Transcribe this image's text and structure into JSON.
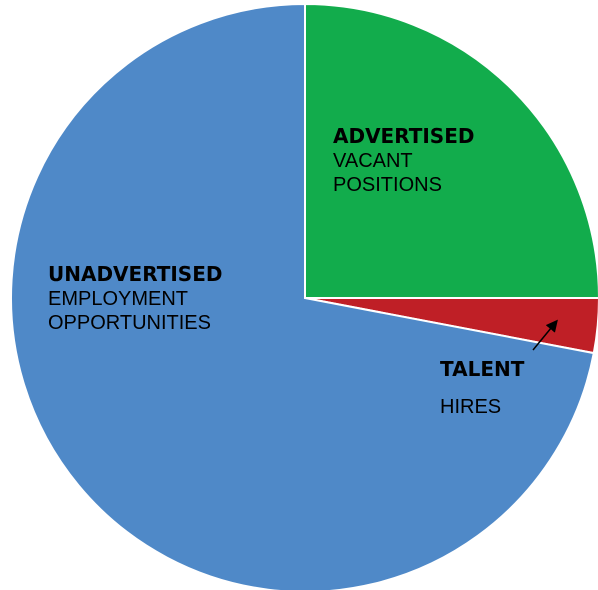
{
  "chart_data": {
    "type": "pie",
    "title": "",
    "start_angle_deg": 0,
    "direction": "clockwise",
    "slices": [
      {
        "key": "advertised",
        "label_bold": "ADVERTISED",
        "label_lines": [
          "VACANT",
          "POSITIONS"
        ],
        "value": 25,
        "color": "#12ac4c"
      },
      {
        "key": "talent",
        "label_bold": "TALENT",
        "label_lines": [
          "HIRES"
        ],
        "value": 3,
        "color": "#bf1f26"
      },
      {
        "key": "unadvertised",
        "label_bold": "UNADVERTISED",
        "label_lines": [
          "EMPLOYMENT",
          "OPPORTUNITIES"
        ],
        "value": 72,
        "color": "#4f89c8"
      }
    ],
    "legend": "none",
    "slice_border_color": "#ffffff"
  }
}
